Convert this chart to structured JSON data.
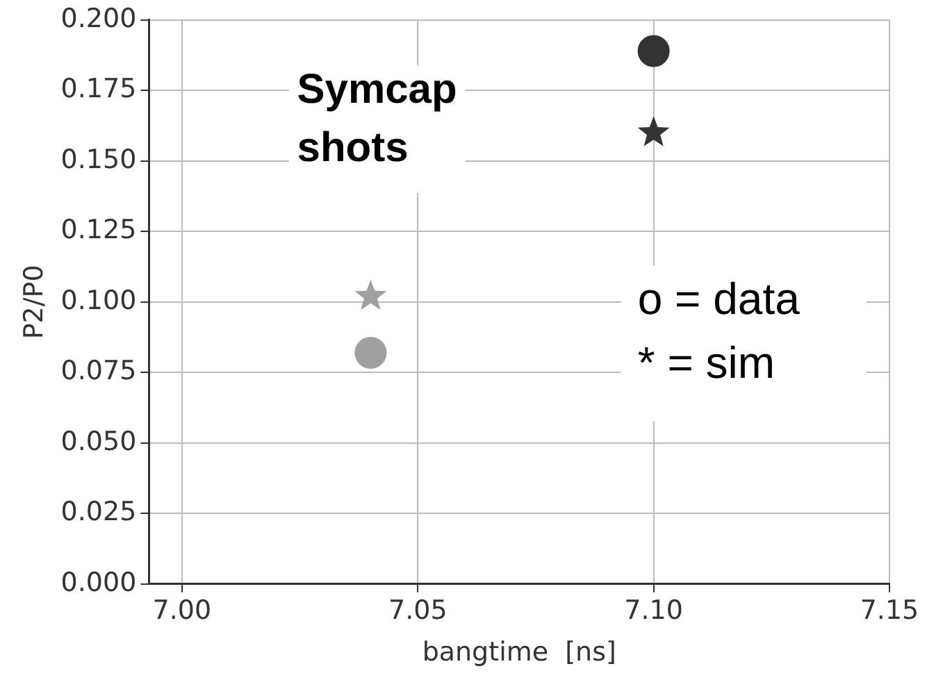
{
  "chart_data": {
    "type": "scatter",
    "xlabel": "bangtime  [ns]",
    "ylabel": "P2/P0",
    "annotations": [
      "Symcap\nshots",
      "o = data\n* = sim"
    ],
    "series": [
      {
        "marker": "circle",
        "values": [
          0.082,
          0.189
        ],
        "colors": [
          "#a0a0a0",
          "#333333"
        ]
      },
      {
        "marker": "star",
        "values": [
          0.102,
          0.16
        ],
        "colors": [
          "#a0a0a0",
          "#333333"
        ]
      }
    ],
    "x": [
      7.04,
      7.1
    ],
    "xlim": [
      6.993,
      7.15
    ],
    "xticks": [
      {
        "value": 7.0,
        "label": "7.00"
      },
      {
        "value": 7.05,
        "label": "7.05"
      },
      {
        "value": 7.1,
        "label": "7.10"
      },
      {
        "value": 7.15,
        "label": "7.15"
      }
    ],
    "ylim": [
      0,
      0.2
    ],
    "yticks": [
      {
        "value": 0,
        "label": "0.000"
      },
      {
        "value": 0.025,
        "label": "0.025"
      },
      {
        "value": 0.05,
        "label": "0.050"
      },
      {
        "value": 0.075,
        "label": "0.075"
      },
      {
        "value": 0.1,
        "label": "0.100"
      },
      {
        "value": 0.125,
        "label": "0.125"
      },
      {
        "value": 0.15,
        "label": "0.150"
      },
      {
        "value": 0.175,
        "label": "0.175"
      },
      {
        "value": 0.2,
        "label": "0.200"
      }
    ],
    "grid": true
  }
}
